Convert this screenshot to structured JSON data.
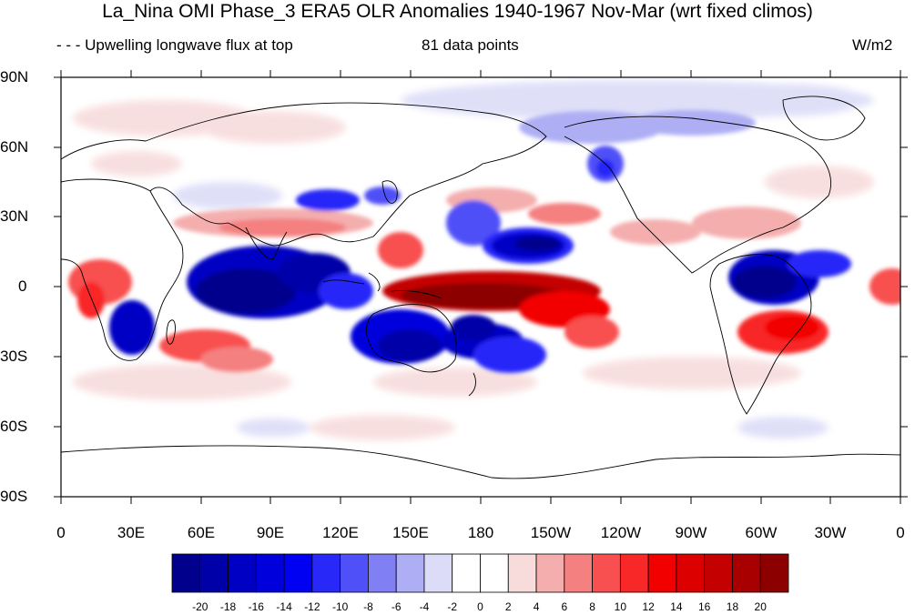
{
  "title": "La_Nina OMI Phase_3 ERA5 OLR Anomalies 1940-1967 Nov-Mar (wrt fixed climos)",
  "left_subtitle": "- - - Upwelling longwave flux at top",
  "center_subtitle": "81 data points",
  "units": "W/m2",
  "lat_labels": [
    "90N",
    "60N",
    "30N",
    "0",
    "30S",
    "60S",
    "90S"
  ],
  "lon_labels": [
    "0",
    "30E",
    "60E",
    "90E",
    "120E",
    "150E",
    "180",
    "150W",
    "120W",
    "90W",
    "60W",
    "30W",
    "0"
  ],
  "colorbar": {
    "labels": [
      "-20",
      "-18",
      "-16",
      "-14",
      "-12",
      "-10",
      "-8",
      "-6",
      "-4",
      "-2",
      "0",
      "2",
      "4",
      "6",
      "8",
      "10",
      "12",
      "14",
      "16",
      "18",
      "20"
    ],
    "colors": [
      "#00008c",
      "#0000a8",
      "#0000c4",
      "#0000dc",
      "#0000f2",
      "#2828f8",
      "#5050f8",
      "#8080f4",
      "#aeaef4",
      "#dcdcf8",
      "#ffffff",
      "#ffffff",
      "#f8dcdc",
      "#f4aeae",
      "#f48080",
      "#f85050",
      "#f82828",
      "#f20000",
      "#dc0000",
      "#c40000",
      "#a80000",
      "#8c0000"
    ]
  }
}
